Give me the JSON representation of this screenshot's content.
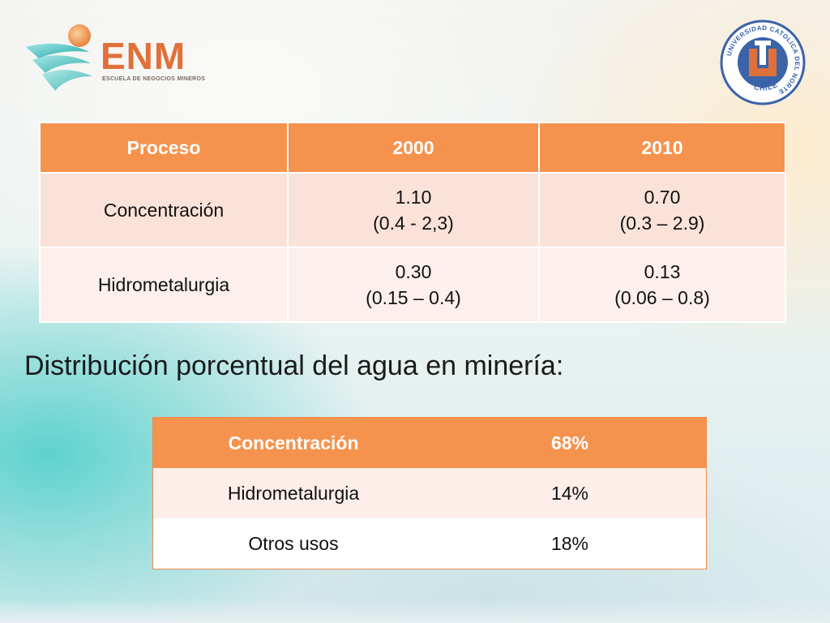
{
  "logos": {
    "enm_name": "ENM",
    "enm_subtitle": "ESCUELA DE NEGOCIOS MINEROS",
    "ucn_ring_text": "UNIVERSIDAD CATOLICA DEL NORTE",
    "ucn_country": "CHILE"
  },
  "table1": {
    "headers": [
      "Proceso",
      "2000",
      "2010"
    ],
    "rows": [
      {
        "proceso": "Concentración",
        "y2000_value": "1.10",
        "y2000_range": "(0.4 - 2,3)",
        "y2010_value": "0.70",
        "y2010_range": "(0.3 – 2.9)"
      },
      {
        "proceso": "Hidrometalurgia",
        "y2000_value": "0.30",
        "y2000_range": "(0.15 – 0.4)",
        "y2010_value": "0.13",
        "y2010_range": "(0.06 – 0.8)"
      }
    ]
  },
  "heading": "Distribución porcentual del agua en minería:",
  "table2": {
    "header": {
      "label": "Concentración",
      "value": "68%"
    },
    "rows": [
      {
        "label": "Hidrometalurgia",
        "value": "14%"
      },
      {
        "label": "Otros usos",
        "value": "18%"
      }
    ]
  },
  "colors": {
    "table_header": "#f5934e",
    "row_light": "#fbe2d9",
    "enm_orange": "#e0703a",
    "ucn_blue": "#3a63a8"
  }
}
